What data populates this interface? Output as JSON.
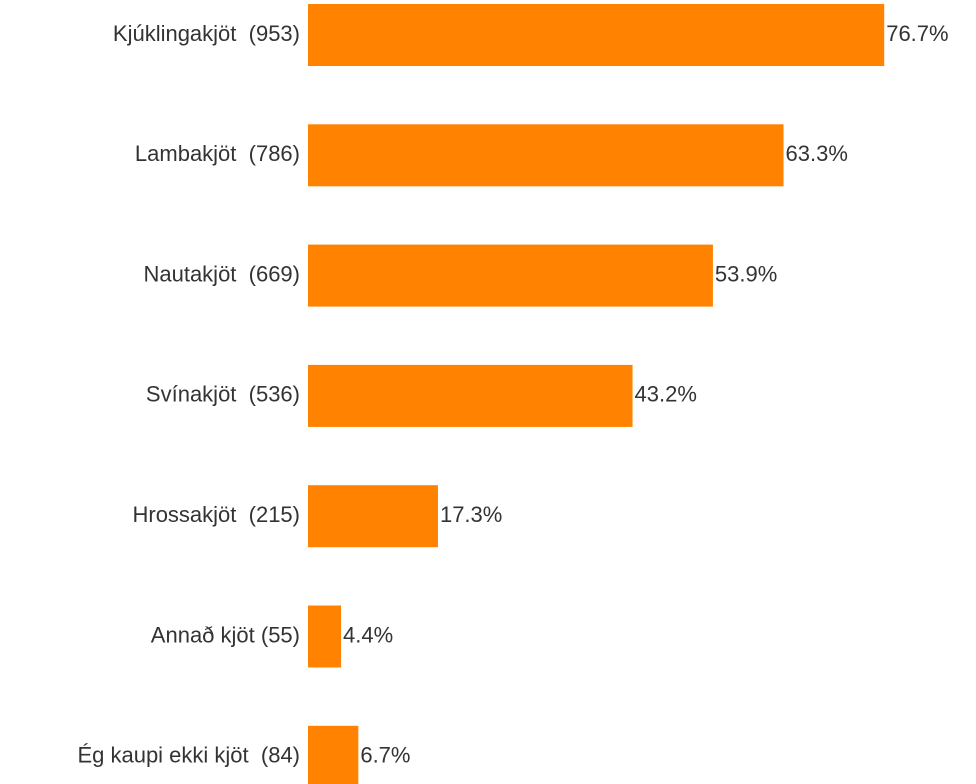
{
  "chart_data": {
    "type": "hbar",
    "categories": [
      "Kjúklingakjöt  (953)",
      "Lambakjöt  (786)",
      "Nautakjöt  (669)",
      "Svínakjöt  (536)",
      "Hrossakjöt  (215)",
      "Annað kjöt (55)",
      "Ég kaupi ekki kjöt  (84)"
    ],
    "values": [
      76.7,
      63.3,
      53.9,
      43.2,
      17.3,
      4.4,
      6.7
    ],
    "value_labels": [
      "76.7%",
      "63.3%",
      "53.9%",
      "43.2%",
      "17.3%",
      "4.4%",
      "6.7%"
    ],
    "color": "#ff8200",
    "xlim": [
      0,
      80
    ]
  }
}
